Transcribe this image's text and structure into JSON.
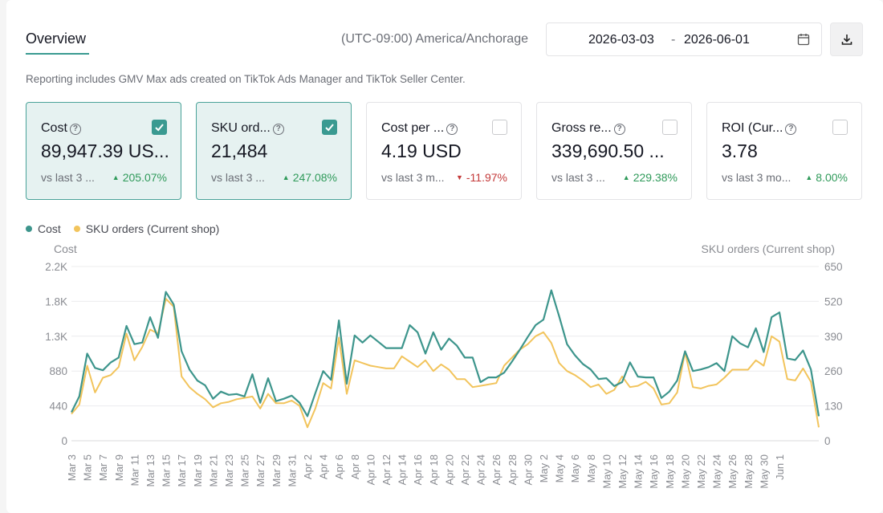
{
  "header": {
    "tab_label": "Overview",
    "timezone": "(UTC-09:00) America/Anchorage",
    "date_start": "2026-03-03",
    "date_sep": "-",
    "date_end": "2026-06-01"
  },
  "note": "Reporting includes GMV Max ads created on TikTok Ads Manager and TikTok Seller Center.",
  "cards": [
    {
      "title": "Cost",
      "value": "89,947.39 US...",
      "vs": "vs last 3 ...",
      "change": "205.07%",
      "dir": "up",
      "selected": true
    },
    {
      "title": "SKU ord...",
      "value": "21,484",
      "vs": "vs last 3 ...",
      "change": "247.08%",
      "dir": "up",
      "selected": true
    },
    {
      "title": "Cost per ...",
      "value": "4.19 USD",
      "vs": "vs last 3 m...",
      "change": "-11.97%",
      "dir": "down",
      "selected": false
    },
    {
      "title": "Gross re...",
      "value": "339,690.50 ...",
      "vs": "vs last 3 ...",
      "change": "229.38%",
      "dir": "up",
      "selected": false
    },
    {
      "title": "ROI (Cur...",
      "value": "3.78",
      "vs": "vs last 3 mo...",
      "change": "8.00%",
      "dir": "up",
      "selected": false
    }
  ],
  "colors": {
    "cost": "#3d958c",
    "orders": "#f2c45c",
    "accent": "#3a9a91"
  },
  "chart_data": {
    "type": "line",
    "legend": [
      "Cost",
      "SKU orders (Current shop)"
    ],
    "ylabel_left": "Cost",
    "ylabel_right": "SKU orders (Current shop)",
    "left_ticks": [
      "0",
      "440",
      "880",
      "1.3K",
      "1.8K",
      "2.2K"
    ],
    "left_ylim": [
      0,
      2200
    ],
    "right_ticks": [
      "0",
      "130",
      "260",
      "390",
      "520",
      "650"
    ],
    "right_ylim": [
      0,
      650
    ],
    "x_tick_labels": [
      "Mar 3",
      "Mar 5",
      "Mar 7",
      "Mar 9",
      "Mar 11",
      "Mar 13",
      "Mar 15",
      "Mar 17",
      "Mar 19",
      "Mar 21",
      "Mar 23",
      "Mar 25",
      "Mar 27",
      "Mar 29",
      "Mar 31",
      "Apr 2",
      "Apr 4",
      "Apr 6",
      "Apr 8",
      "Apr 10",
      "Apr 12",
      "Apr 14",
      "Apr 16",
      "Apr 18",
      "Apr 20",
      "Apr 22",
      "Apr 24",
      "Apr 26",
      "Apr 28",
      "Apr 30",
      "May 2",
      "May 4",
      "May 6",
      "May 8",
      "May 10",
      "May 12",
      "May 14",
      "May 16",
      "May 18",
      "May 20",
      "May 22",
      "May 24",
      "May 26",
      "May 28",
      "May 30",
      "Jun 1"
    ],
    "series": [
      {
        "name": "Cost",
        "values": [
          360,
          560,
          1100,
          920,
          890,
          990,
          1050,
          1450,
          1220,
          1240,
          1560,
          1300,
          1880,
          1720,
          1130,
          900,
          760,
          700,
          530,
          620,
          580,
          590,
          560,
          840,
          480,
          790,
          500,
          530,
          570,
          480,
          310,
          600,
          880,
          770,
          1520,
          720,
          1330,
          1240,
          1330,
          1250,
          1170,
          1170,
          1170,
          1460,
          1370,
          1100,
          1370,
          1150,
          1290,
          1200,
          1050,
          1050,
          740,
          800,
          800,
          860,
          1000,
          1150,
          1310,
          1460,
          1530,
          1900,
          1570,
          1220,
          1080,
          970,
          900,
          780,
          790,
          690,
          740,
          990,
          810,
          800,
          800,
          540,
          620,
          760,
          1130,
          880,
          900,
          930,
          980,
          880,
          1320,
          1230,
          1180,
          1420,
          1120,
          1560,
          1620,
          1040,
          1020,
          1140,
          900,
          310
        ]
      },
      {
        "name": "SKU orders (Current shop)",
        "values": [
          100,
          135,
          280,
          180,
          235,
          245,
          275,
          400,
          300,
          350,
          415,
          400,
          530,
          500,
          240,
          200,
          175,
          155,
          125,
          140,
          145,
          155,
          160,
          165,
          120,
          175,
          140,
          140,
          150,
          130,
          50,
          120,
          215,
          195,
          385,
          175,
          300,
          290,
          280,
          275,
          270,
          270,
          315,
          295,
          275,
          300,
          260,
          285,
          265,
          230,
          230,
          200,
          205,
          210,
          215,
          280,
          310,
          340,
          360,
          390,
          405,
          365,
          290,
          260,
          245,
          225,
          200,
          210,
          175,
          190,
          240,
          200,
          205,
          220,
          195,
          135,
          140,
          180,
          330,
          200,
          195,
          205,
          210,
          235,
          265,
          265,
          265,
          300,
          280,
          390,
          370,
          230,
          225,
          270,
          220,
          50
        ]
      }
    ]
  }
}
